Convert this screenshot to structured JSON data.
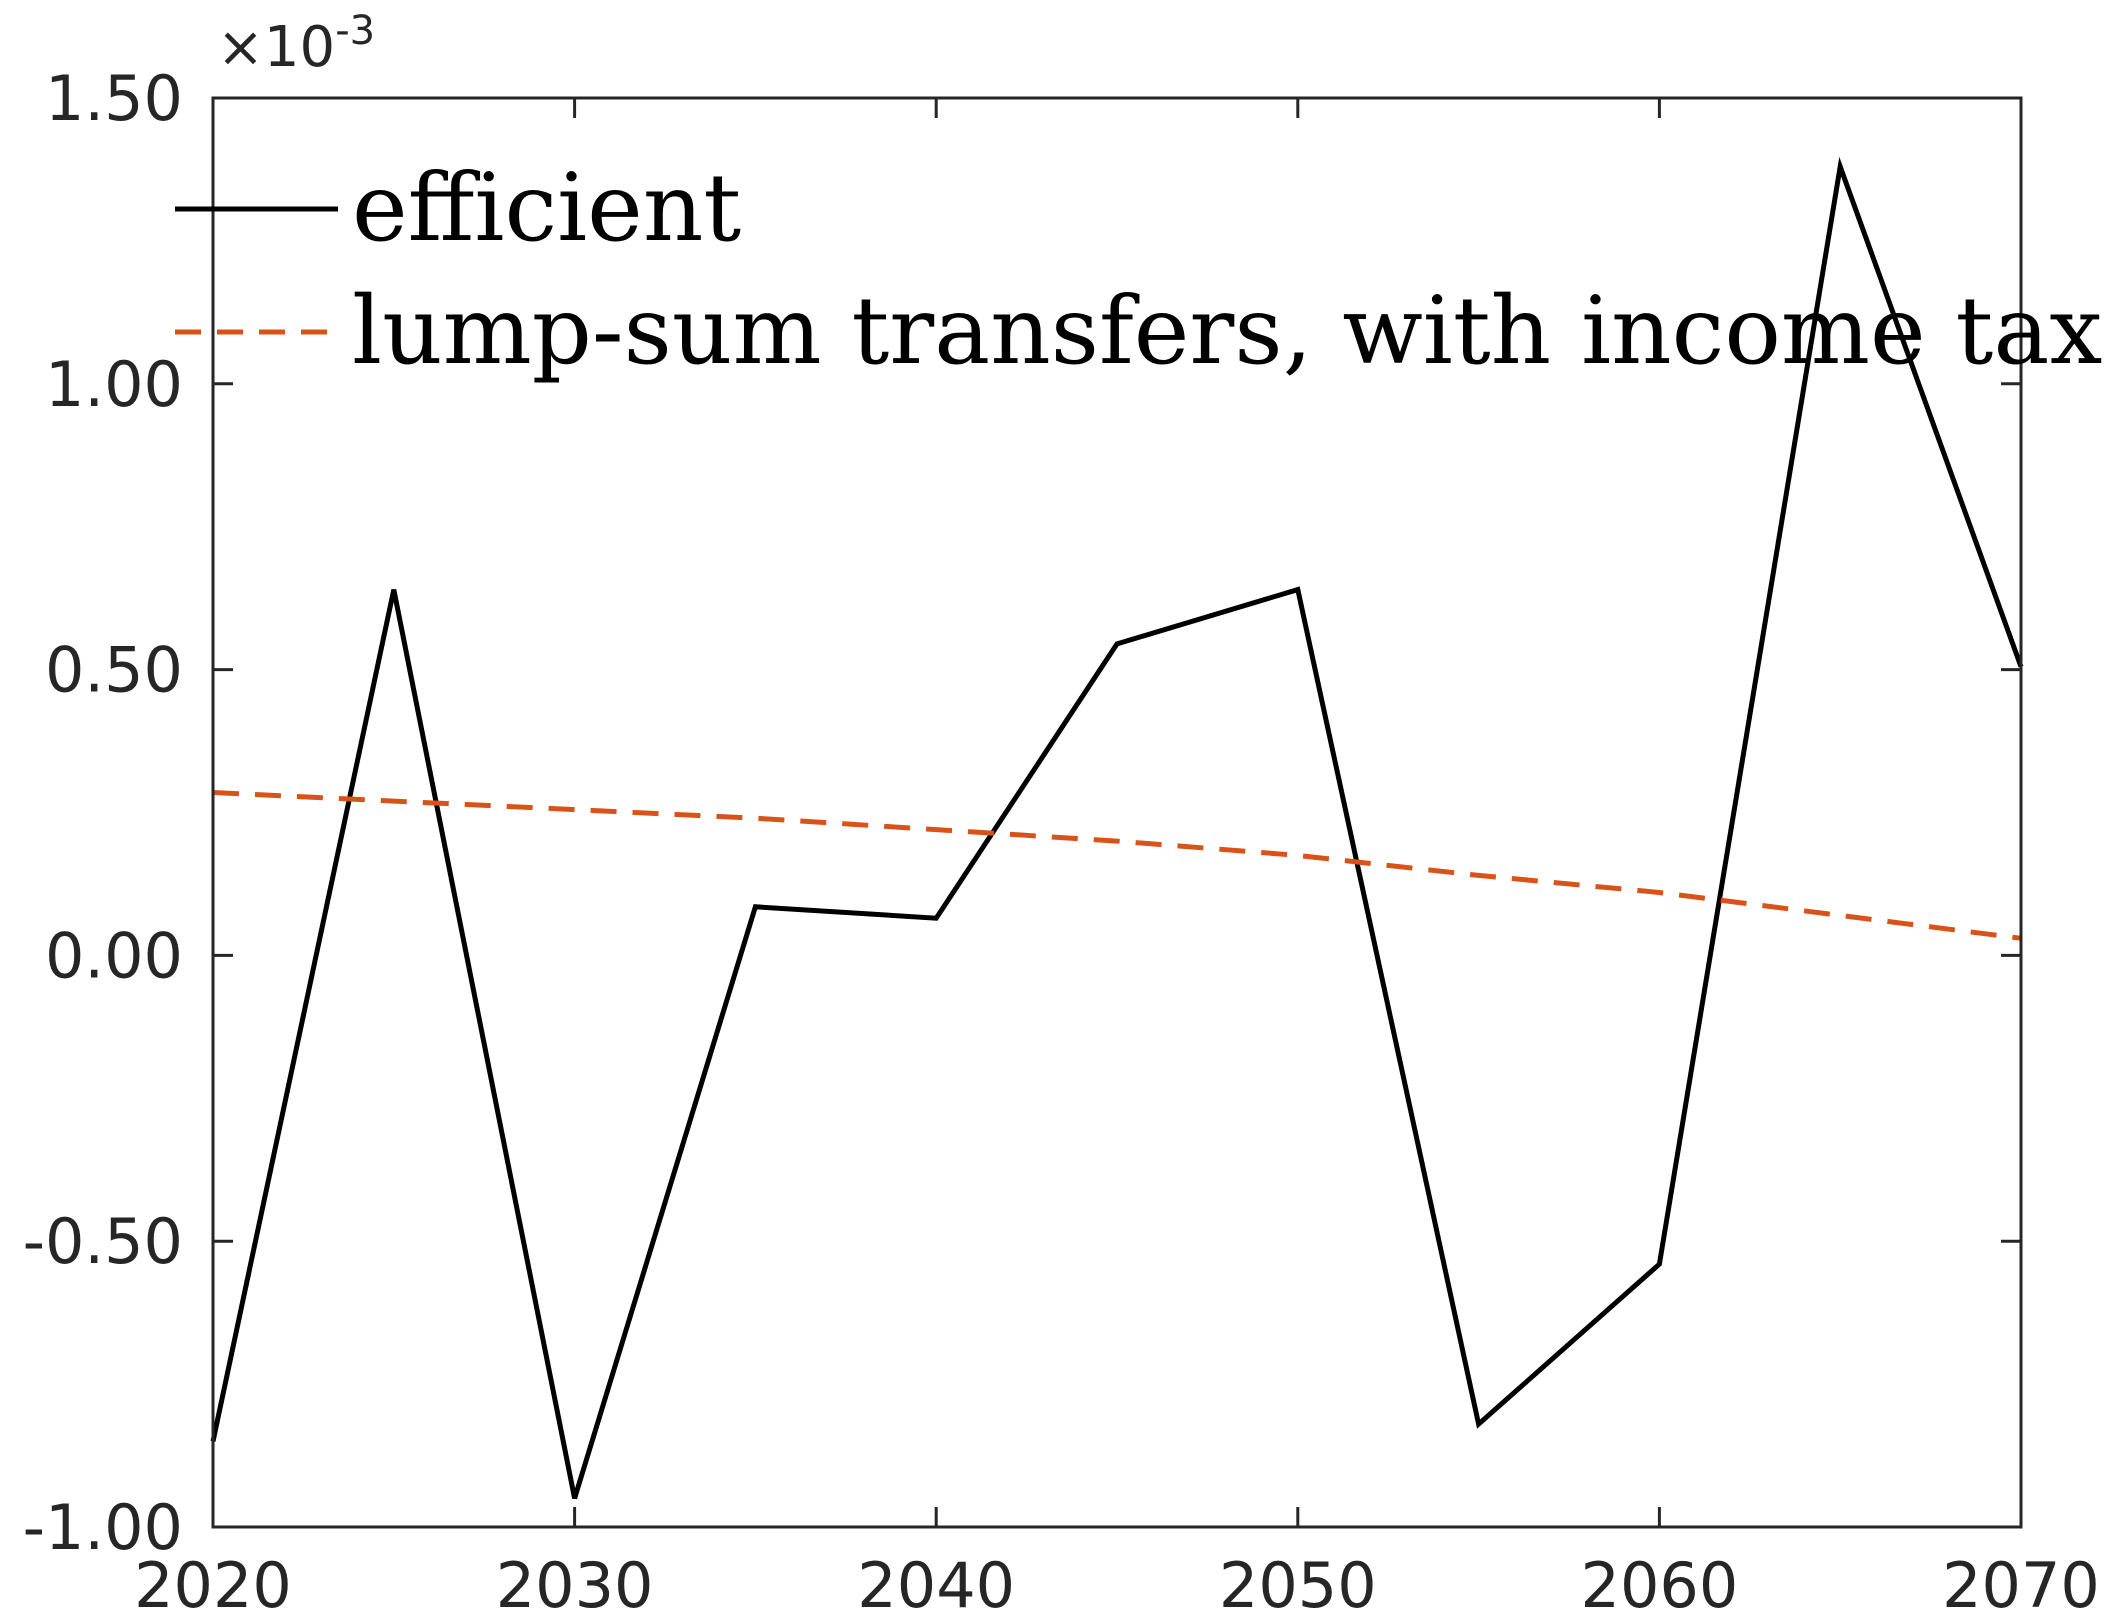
{
  "chart_data": {
    "type": "line",
    "x": [
      2020,
      2025,
      2030,
      2035,
      2040,
      2045,
      2050,
      2055,
      2060,
      2065,
      2070
    ],
    "series": [
      {
        "name": "efficient",
        "values": [
          -0.00085,
          0.00064,
          -0.00095,
          8.5e-05,
          6.5e-05,
          0.000545,
          0.00064,
          -0.00082,
          -0.00054,
          0.00138,
          0.000505
        ],
        "color": "#000000",
        "style": "solid"
      },
      {
        "name": "lump-sum transfers, with income tax",
        "values": [
          0.000285,
          0.00027,
          0.000255,
          0.00024,
          0.00022,
          0.0002,
          0.000175,
          0.00014,
          0.00011,
          7e-05,
          3e-05
        ],
        "color": "#D95319",
        "style": "dashed"
      }
    ],
    "xlim": [
      2020,
      2070
    ],
    "ylim": [
      -0.001,
      0.0015
    ],
    "xticks": [
      "2020",
      "2030",
      "2040",
      "2050",
      "2060",
      "2070"
    ],
    "yticks": [
      "-1.00",
      "-0.50",
      "0.00",
      "0.50",
      "1.00",
      "1.50"
    ],
    "exponent_label": {
      "prefix": "×10",
      "power": "-3"
    },
    "legend_position": "top-left",
    "grid": false
  }
}
